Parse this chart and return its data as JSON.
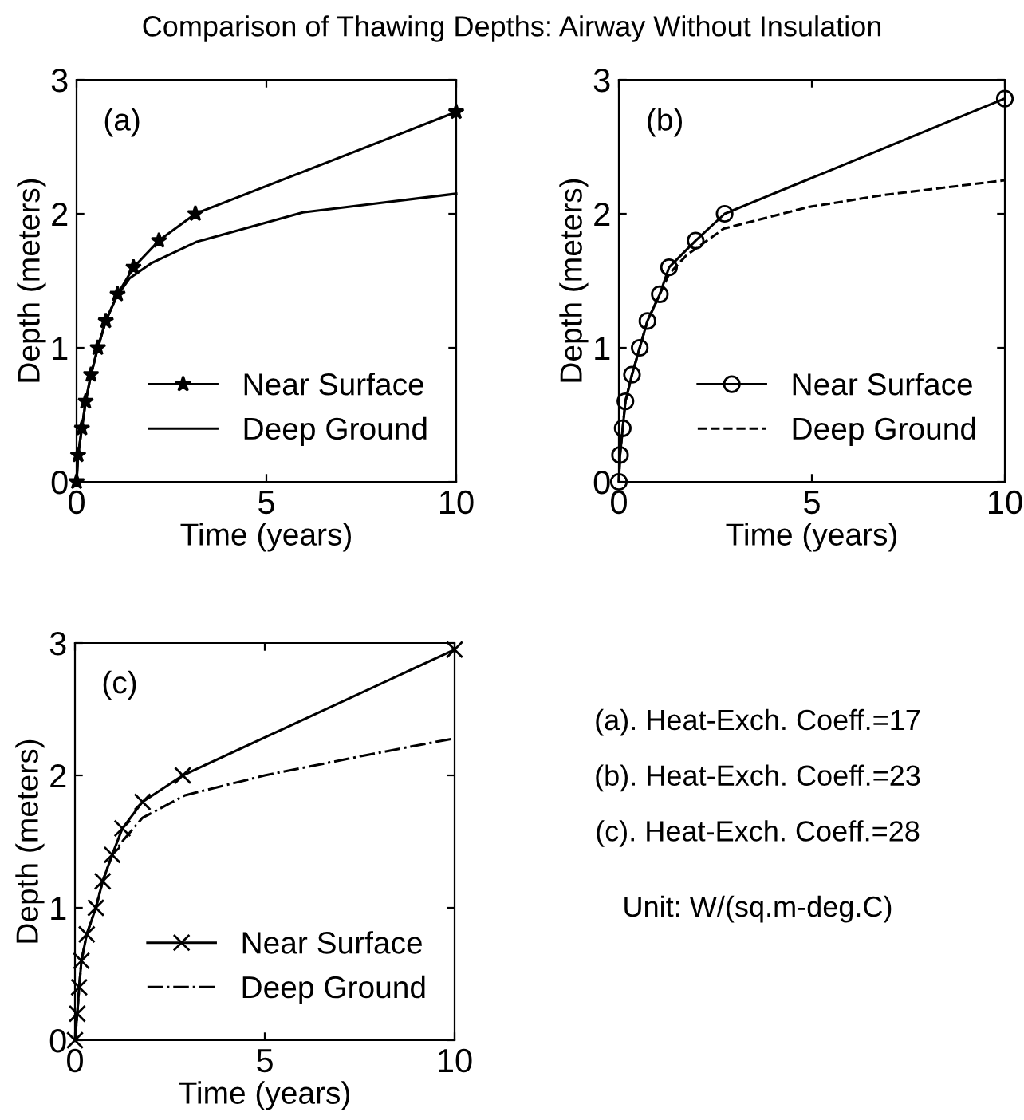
{
  "chart_data": [
    {
      "type": "line",
      "title": "Comparison of Thawing Depths: Airway Without Insulation",
      "xlabel": "Time (years)",
      "ylabel": "Depth (meters)",
      "annotations": [
        "(a)"
      ],
      "xlim": [
        0,
        10
      ],
      "ylim": [
        0,
        3
      ],
      "xticks": [
        0,
        5,
        10
      ],
      "yticks": [
        0,
        1,
        2,
        3
      ],
      "grid": false,
      "legend": "bottom right",
      "series": [
        {
          "name": "Near Surface",
          "color": "#000000",
          "marker": "star",
          "line_style": "solid",
          "x": [
            0,
            0.04,
            0.14,
            0.24,
            0.38,
            0.56,
            0.77,
            1.08,
            1.5,
            2.17,
            3.13,
            10
          ],
          "values": [
            0,
            0.2,
            0.4,
            0.6,
            0.8,
            1.0,
            1.2,
            1.4,
            1.6,
            1.8,
            2.0,
            2.76
          ]
        },
        {
          "name": "Deep Ground",
          "color": "#000000",
          "marker": "none",
          "line_style": "solid",
          "x": [
            0,
            0.04,
            0.14,
            0.24,
            0.38,
            0.56,
            0.77,
            1.05,
            1.4,
            1.96,
            3.15,
            5.96,
            10
          ],
          "values": [
            0,
            0.2,
            0.4,
            0.6,
            0.8,
            1.0,
            1.2,
            1.38,
            1.52,
            1.63,
            1.79,
            2.01,
            2.15
          ]
        }
      ]
    },
    {
      "type": "line",
      "xlabel": "Time (years)",
      "ylabel": "Depth (meters)",
      "annotations": [
        "(b)"
      ],
      "xlim": [
        0,
        10
      ],
      "ylim": [
        0,
        3
      ],
      "xticks": [
        0,
        5,
        10
      ],
      "yticks": [
        0,
        1,
        2,
        3
      ],
      "grid": false,
      "legend": "bottom right",
      "series": [
        {
          "name": "Near Surface",
          "color": "#000000",
          "marker": "circle",
          "line_style": "solid",
          "x": [
            0,
            0.03,
            0.1,
            0.17,
            0.34,
            0.54,
            0.74,
            1.06,
            1.3,
            1.99,
            2.74,
            10
          ],
          "values": [
            0,
            0.2,
            0.4,
            0.6,
            0.8,
            1.0,
            1.2,
            1.4,
            1.6,
            1.8,
            2.0,
            2.86
          ]
        },
        {
          "name": "Deep Ground",
          "color": "#000000",
          "marker": "none",
          "line_style": "dashed",
          "x": [
            0,
            0.03,
            0.1,
            0.17,
            0.34,
            0.54,
            0.74,
            1.06,
            1.3,
            1.75,
            2.72,
            4.9,
            6.86,
            10
          ],
          "values": [
            0,
            0.2,
            0.4,
            0.6,
            0.8,
            1.0,
            1.2,
            1.4,
            1.55,
            1.69,
            1.89,
            2.05,
            2.14,
            2.25
          ]
        }
      ]
    },
    {
      "type": "line",
      "xlabel": "Time (years)",
      "ylabel": "Depth (meters)",
      "annotations": [
        "(c)"
      ],
      "xlim": [
        0,
        10
      ],
      "ylim": [
        0,
        3
      ],
      "xticks": [
        0,
        5,
        10
      ],
      "yticks": [
        0,
        1,
        2,
        3
      ],
      "grid": false,
      "legend": "bottom right",
      "series": [
        {
          "name": "Near Surface",
          "color": "#000000",
          "marker": "cross",
          "line_style": "solid",
          "x": [
            0,
            0.06,
            0.11,
            0.17,
            0.31,
            0.55,
            0.73,
            0.98,
            1.25,
            1.78,
            2.84,
            10
          ],
          "values": [
            0,
            0.2,
            0.4,
            0.6,
            0.8,
            1.0,
            1.2,
            1.4,
            1.6,
            1.8,
            2.0,
            2.95
          ]
        },
        {
          "name": "Deep Ground",
          "color": "#000000",
          "marker": "none",
          "line_style": "dashdot",
          "x": [
            0,
            0.06,
            0.11,
            0.17,
            0.31,
            0.55,
            0.73,
            0.98,
            1.3,
            1.78,
            2.9,
            5.0,
            7.8,
            10
          ],
          "values": [
            0,
            0.2,
            0.4,
            0.6,
            0.8,
            1.0,
            1.2,
            1.4,
            1.52,
            1.68,
            1.85,
            2.0,
            2.16,
            2.28
          ]
        }
      ]
    },
    {
      "type": "other",
      "annotations": [
        "(a). Heat-Exch. Coeff.=17",
        "(b). Heat-Exch. Coeff.=23",
        "(c). Heat-Exch. Coeff.=28",
        "Unit: W/(sq.m-deg.C)"
      ]
    }
  ]
}
